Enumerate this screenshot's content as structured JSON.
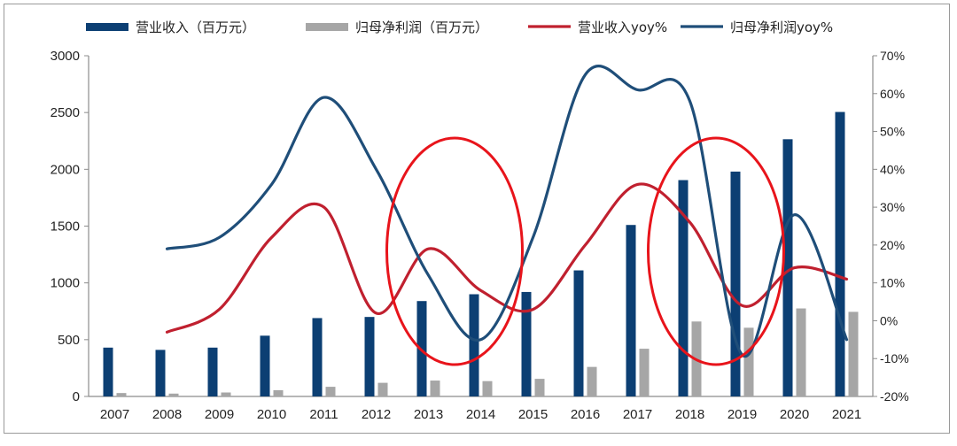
{
  "chart_data": {
    "type": "bar",
    "categories": [
      "2007",
      "2008",
      "2009",
      "2010",
      "2011",
      "2012",
      "2013",
      "2014",
      "2015",
      "2016",
      "2017",
      "2018",
      "2019",
      "2020",
      "2021"
    ],
    "series": [
      {
        "name": "营业收入（百万元）",
        "kind": "bar",
        "axis": "left",
        "color": "#0c3f73",
        "values": [
          430,
          410,
          430,
          535,
          690,
          700,
          840,
          900,
          920,
          1110,
          1510,
          1905,
          1980,
          2265,
          2505
        ]
      },
      {
        "name": "归母净利润（百万元）",
        "kind": "bar",
        "axis": "left",
        "color": "#a6a6a6",
        "values": [
          30,
          25,
          35,
          55,
          85,
          120,
          140,
          135,
          155,
          260,
          420,
          660,
          605,
          775,
          745
        ]
      },
      {
        "name": "营业收入yoy%",
        "kind": "line",
        "axis": "right",
        "color": "#c0202f",
        "values": [
          null,
          -3,
          3,
          22,
          30,
          2,
          19,
          8,
          3,
          20,
          36,
          26,
          4,
          14,
          11
        ]
      },
      {
        "name": "归母净利润yoy%",
        "kind": "line",
        "axis": "right",
        "color": "#1f4e79",
        "values": [
          null,
          19,
          22,
          36,
          59,
          40,
          12,
          -5,
          22,
          65,
          61,
          58,
          -9,
          28,
          -5
        ]
      }
    ],
    "y_left": {
      "min": 0,
      "max": 3000,
      "ticks": [
        0,
        500,
        1000,
        1500,
        2000,
        2500,
        3000
      ]
    },
    "y_right": {
      "min": -20,
      "max": 70,
      "ticks": [
        "-20%",
        "-10%",
        "0%",
        "10%",
        "20%",
        "30%",
        "40%",
        "50%",
        "60%",
        "70%"
      ]
    },
    "grid": false,
    "legend": "top",
    "annotations": [
      {
        "shape": "ellipse",
        "color": "#e8141b",
        "around": [
          "2013",
          "2014"
        ]
      },
      {
        "shape": "ellipse",
        "color": "#e8141b",
        "around": [
          "2018",
          "2019"
        ]
      }
    ]
  }
}
